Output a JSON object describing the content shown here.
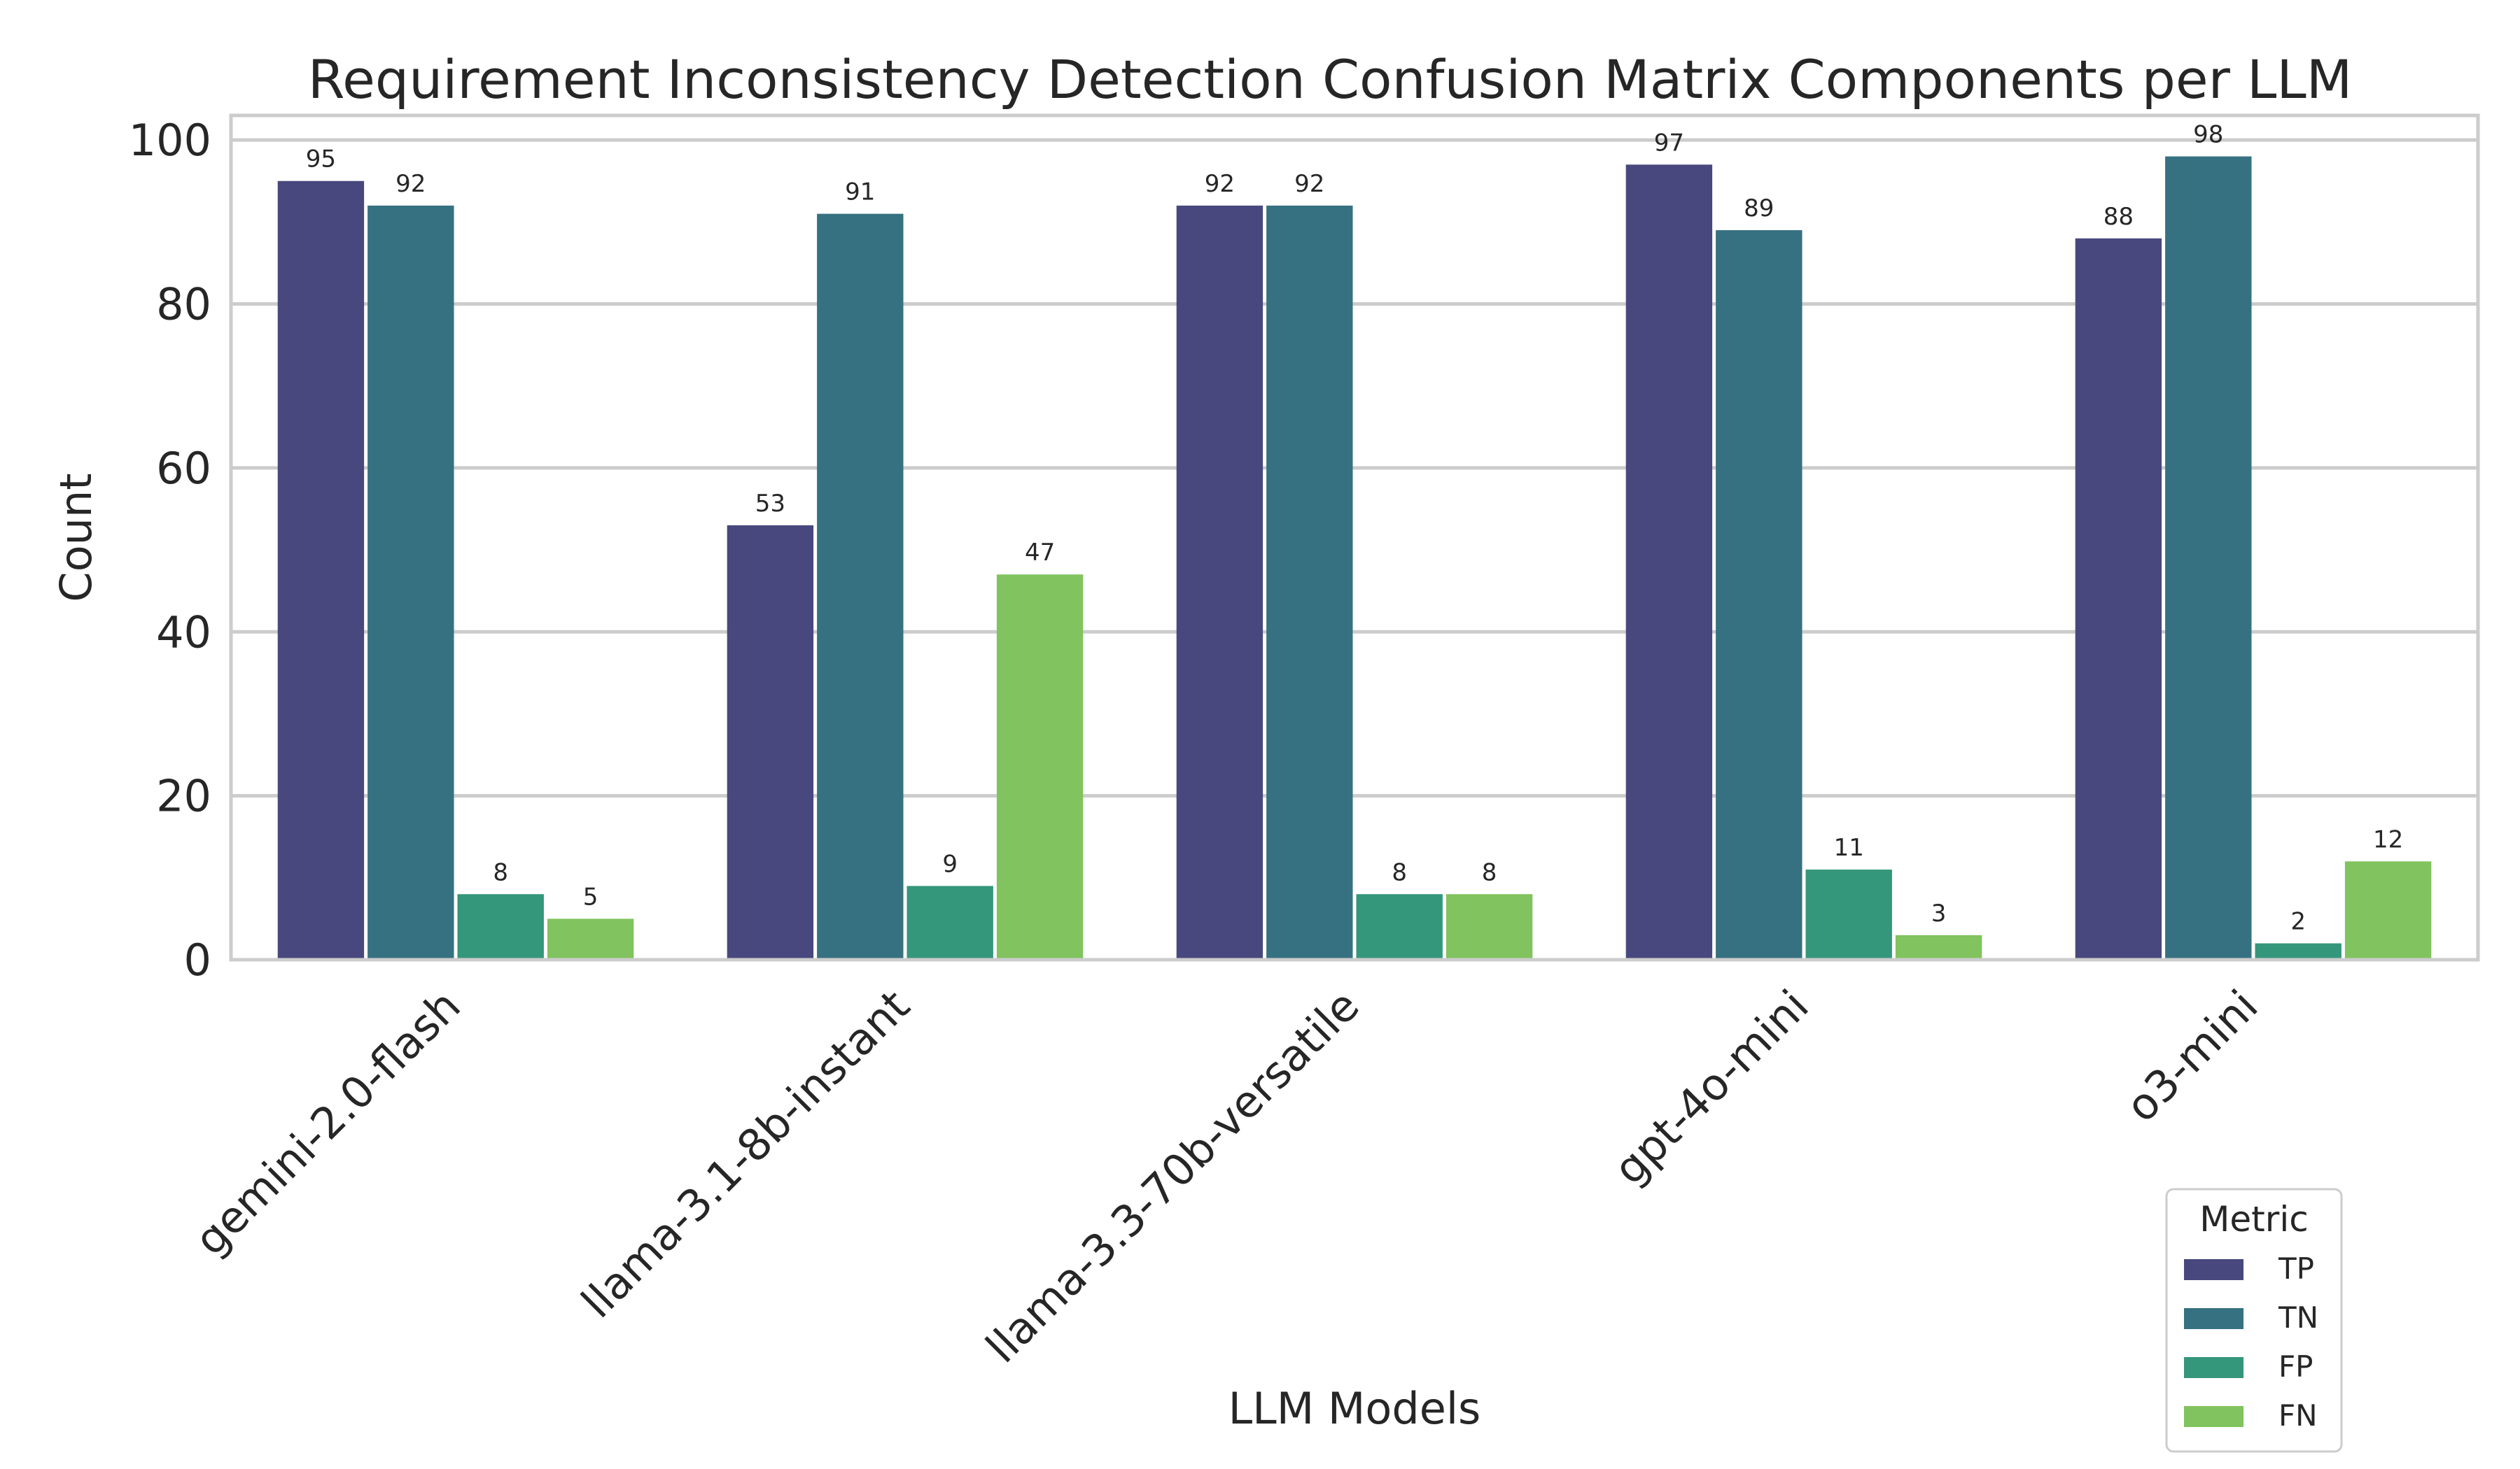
{
  "chart_data": {
    "type": "bar",
    "title": "Requirement Inconsistency Detection Confusion Matrix Components per LLM",
    "xlabel": "LLM Models",
    "ylabel": "Count",
    "ylim": [
      0,
      103
    ],
    "yticks": [
      0,
      20,
      40,
      60,
      80,
      100
    ],
    "grid": "y",
    "legend": {
      "title": "Metric",
      "placement": "bottom-right"
    },
    "categories": [
      "gemini-2.0-flash",
      "llama-3.1-8b-instant",
      "llama-3.3-70b-versatile",
      "gpt-4o-mini",
      "o3-mini"
    ],
    "series": [
      {
        "name": "TP",
        "color": "#48487e",
        "values": [
          95,
          53,
          92,
          97,
          88
        ]
      },
      {
        "name": "TN",
        "color": "#367181",
        "values": [
          92,
          91,
          92,
          89,
          98
        ]
      },
      {
        "name": "FP",
        "color": "#34967b",
        "values": [
          8,
          9,
          8,
          11,
          2
        ]
      },
      {
        "name": "FN",
        "color": "#81c35e",
        "values": [
          5,
          47,
          8,
          3,
          12
        ]
      }
    ]
  }
}
